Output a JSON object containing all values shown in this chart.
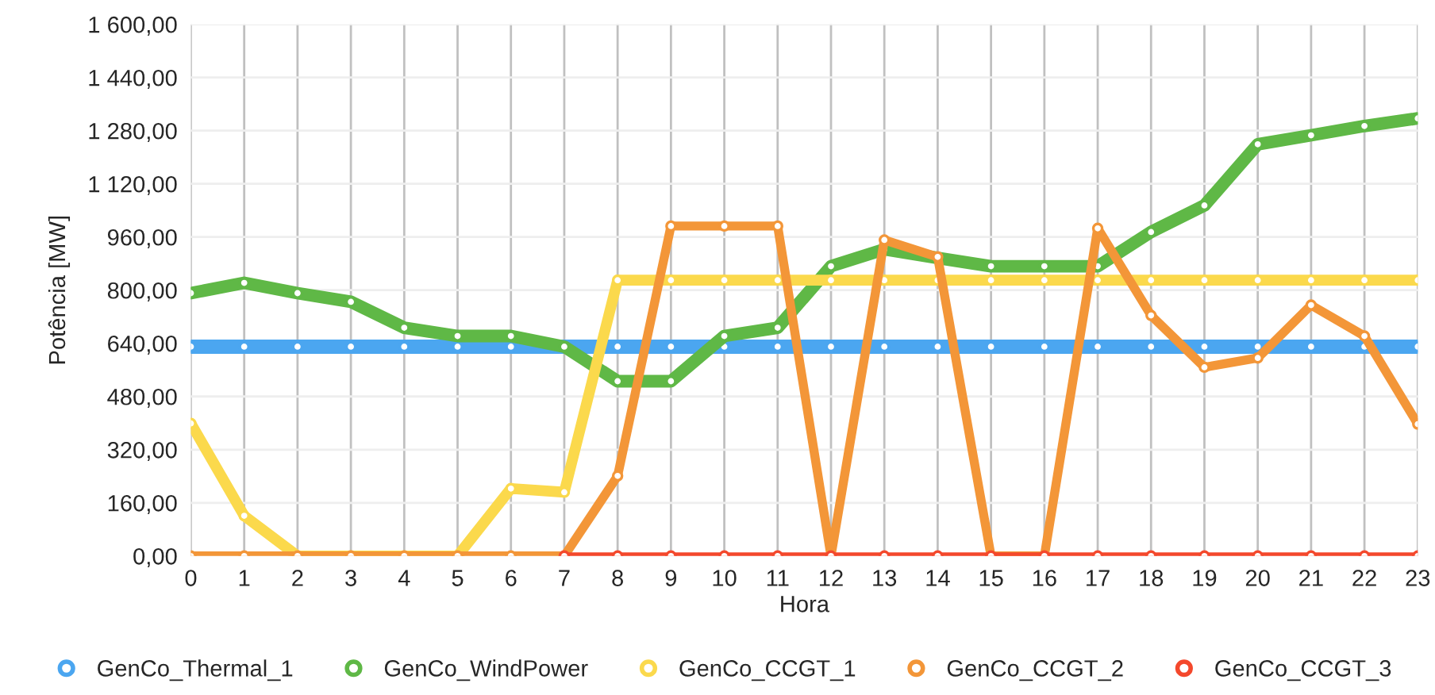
{
  "chart_data": {
    "type": "line",
    "xlabel": "Hora",
    "ylabel": "Potência [MW]",
    "categories": [
      "0",
      "1",
      "2",
      "3",
      "4",
      "5",
      "6",
      "7",
      "8",
      "9",
      "10",
      "11",
      "12",
      "13",
      "14",
      "15",
      "16",
      "17",
      "18",
      "19",
      "20",
      "21",
      "22",
      "23"
    ],
    "ylim": [
      0,
      1600
    ],
    "yticks": [
      {
        "value": 0,
        "label": "0,00"
      },
      {
        "value": 160,
        "label": "160,00"
      },
      {
        "value": 320,
        "label": "320,00"
      },
      {
        "value": 480,
        "label": "480,00"
      },
      {
        "value": 640,
        "label": "640,00"
      },
      {
        "value": 800,
        "label": "800,00"
      },
      {
        "value": 960,
        "label": "960,00"
      },
      {
        "value": 1120,
        "label": "1 120,00"
      },
      {
        "value": 1280,
        "label": "1 280,00"
      },
      {
        "value": 1440,
        "label": "1 440,00"
      },
      {
        "value": 1600,
        "label": "1 600,00"
      }
    ],
    "grid": true,
    "legend": "bottom",
    "marker": "circle",
    "line_style": "solid",
    "series": [
      {
        "name": "GenCo_Thermal_1",
        "color": "#4ba6f0",
        "values": [
          630,
          630,
          630,
          630,
          630,
          630,
          630,
          630,
          630,
          630,
          630,
          630,
          630,
          630,
          630,
          630,
          630,
          630,
          630,
          630,
          630,
          630,
          630,
          630
        ]
      },
      {
        "name": "GenCo_WindPower",
        "color": "#5fb846",
        "values": [
          791,
          822,
          791,
          765,
          687,
          662,
          662,
          630,
          526,
          526,
          662,
          687,
          872,
          923,
          897,
          872,
          872,
          872,
          975,
          1055,
          1239,
          1266,
          1294,
          1317
        ]
      },
      {
        "name": "GenCo_CCGT_1",
        "color": "#fbd94c",
        "values": [
          399,
          121,
          0,
          0,
          0,
          0,
          203,
          192,
          830,
          830,
          830,
          830,
          830,
          830,
          830,
          830,
          830,
          830,
          830,
          830,
          830,
          830,
          830,
          830
        ]
      },
      {
        "name": "GenCo_CCGT_2",
        "color": "#f39638",
        "values": [
          0,
          0,
          0,
          0,
          0,
          0,
          0,
          0,
          241,
          993,
          993,
          993,
          0,
          951,
          900,
          0,
          0,
          986,
          724,
          568,
          596,
          755,
          662,
          397
        ]
      },
      {
        "name": "GenCo_CCGT_3",
        "color": "#f4482c",
        "values": [
          null,
          null,
          null,
          null,
          null,
          null,
          null,
          0,
          0,
          0,
          0,
          0,
          0,
          0,
          0,
          0,
          0,
          0,
          0,
          0,
          0,
          0,
          0,
          0
        ]
      }
    ]
  }
}
